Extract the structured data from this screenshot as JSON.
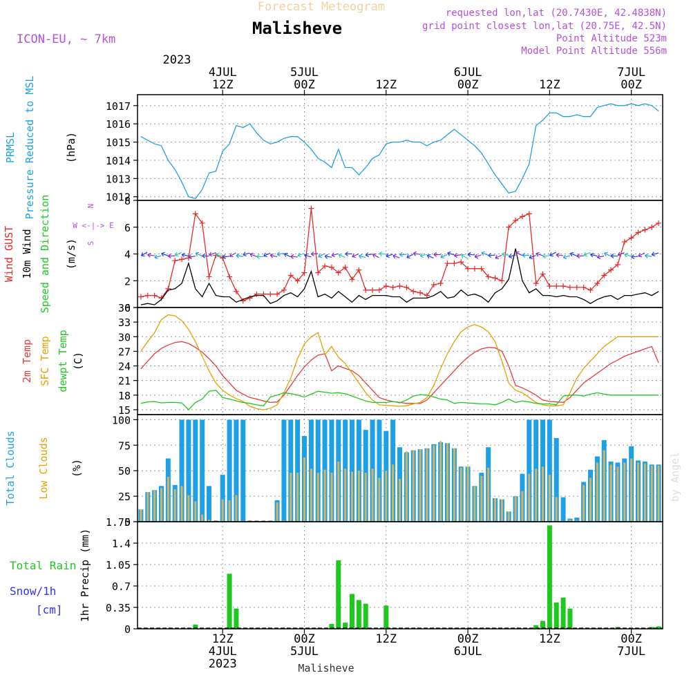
{
  "header": {
    "model": "ICON-EU, ~ 7km",
    "title": "Malisheve",
    "subtitle": "Forecast Meteogram",
    "info": [
      "requested lon,lat (20.7430E, 42.4838N)",
      "grid point closest lon,lat (20.75E, 42.5N)",
      "Point Altitude 523m",
      "Model Point Altitude 556m"
    ],
    "bottom_label": "Malisheve",
    "credit": "by Angel"
  },
  "colors": {
    "pressure": "#1ea0e6",
    "gust": "#e62828",
    "wind": "#000000",
    "temp2m": "#e63c3c",
    "sfc": "#e6a000",
    "dewpt": "#1ec81e",
    "total_clouds": "#1ea0e6",
    "low_clouds": "#d2b464",
    "rain": "#1ec81e",
    "snow": "#3232e6",
    "grid": "#999999",
    "axis": "#000000",
    "title_color": "#000000",
    "info_color": "#b450dc",
    "subtitle_color": "#f0d2a0"
  },
  "time_axis": {
    "top_year": "2023",
    "top_ticks": [
      {
        "h": 12,
        "l1": "4JUL",
        "l2": "12Z"
      },
      {
        "h": 24,
        "l1": "5JUL",
        "l2": "00Z"
      },
      {
        "h": 36,
        "l1": "",
        "l2": "12Z"
      },
      {
        "h": 48,
        "l1": "6JUL",
        "l2": "00Z"
      },
      {
        "h": 60,
        "l1": "",
        "l2": "12Z"
      },
      {
        "h": 72,
        "l1": "7JUL",
        "l2": "00Z"
      }
    ],
    "bottom_ticks": [
      {
        "h": 12,
        "l1": "12Z",
        "l2": "4JUL",
        "l3": "2023"
      },
      {
        "h": 24,
        "l1": "00Z",
        "l2": "5JUL",
        "l3": ""
      },
      {
        "h": 36,
        "l1": "12Z",
        "l2": "",
        "l3": ""
      },
      {
        "h": 48,
        "l1": "00Z",
        "l2": "6JUL",
        "l3": ""
      },
      {
        "h": 60,
        "l1": "12Z",
        "l2": "",
        "l3": ""
      },
      {
        "h": 72,
        "l1": "00Z",
        "l2": "7JUL",
        "l3": ""
      }
    ]
  },
  "chart_data": [
    {
      "type": "line",
      "title": "PRMSL Pressure Reduced to MSL",
      "ylabel": [
        "PRMSL",
        "Pressure Reduced to MSL",
        "(hPa)"
      ],
      "ylim": [
        1011.8,
        1017.6
      ],
      "yticks": [
        1012,
        1013,
        1014,
        1015,
        1016,
        1017
      ],
      "x_hours": [
        0,
        1,
        2,
        3,
        4,
        5,
        6,
        7,
        8,
        9,
        10,
        11,
        12,
        13,
        14,
        15,
        16,
        17,
        18,
        19,
        20,
        21,
        22,
        23,
        24,
        25,
        26,
        27,
        28,
        29,
        30,
        31,
        32,
        33,
        34,
        35,
        36,
        37,
        38,
        39,
        40,
        41,
        42,
        43,
        44,
        45,
        46,
        47,
        48,
        49,
        50,
        51,
        52,
        53,
        54,
        55,
        56,
        57,
        58,
        59,
        60,
        61,
        62,
        63,
        64,
        65,
        66,
        67,
        68,
        69,
        70,
        71,
        72,
        73,
        74,
        75,
        76
      ],
      "series": [
        {
          "name": "PRMSL",
          "values": [
            1015.3,
            1015.1,
            1014.9,
            1014.8,
            1014.0,
            1013.5,
            1012.8,
            1012.0,
            1011.9,
            1012.4,
            1013.3,
            1013.4,
            1014.5,
            1014.9,
            1015.9,
            1015.8,
            1016.0,
            1015.5,
            1015.1,
            1014.9,
            1015.0,
            1015.2,
            1015.3,
            1015.3,
            1015.0,
            1014.6,
            1014.1,
            1013.9,
            1013.6,
            1014.6,
            1013.6,
            1013.6,
            1013.2,
            1013.6,
            1014.1,
            1014.3,
            1014.9,
            1015.0,
            1015.0,
            1015.1,
            1015.0,
            1015.0,
            1014.8,
            1015.0,
            1015.1,
            1015.4,
            1015.7,
            1015.4,
            1015.1,
            1014.8,
            1014.4,
            1013.8,
            1013.2,
            1012.7,
            1012.2,
            1012.3,
            1013.0,
            1013.8,
            1015.9,
            1016.2,
            1016.6,
            1016.6,
            1016.4,
            1016.4,
            1016.5,
            1016.4,
            1016.4,
            1016.9,
            1017.0,
            1017.1,
            1017.0,
            1017.0,
            1017.1,
            1017.0,
            1017.1,
            1017.0,
            1016.7
          ]
        }
      ]
    },
    {
      "type": "line",
      "title": "Wind GUST, 10m Wind Speed and Direction",
      "ylabel": [
        "Wind GUST",
        "10m Wind",
        "Speed and Direction",
        "(m/s)"
      ],
      "ylim": [
        0,
        8
      ],
      "yticks": [
        0,
        2,
        4,
        6,
        8
      ],
      "compass": [
        "N",
        "W <-|-> E",
        "S"
      ],
      "x_hours": [
        0,
        1,
        2,
        3,
        4,
        5,
        6,
        7,
        8,
        9,
        10,
        11,
        12,
        13,
        14,
        15,
        16,
        17,
        18,
        19,
        20,
        21,
        22,
        23,
        24,
        25,
        26,
        27,
        28,
        29,
        30,
        31,
        32,
        33,
        34,
        35,
        36,
        37,
        38,
        39,
        40,
        41,
        42,
        43,
        44,
        45,
        46,
        47,
        48,
        49,
        50,
        51,
        52,
        53,
        54,
        55,
        56,
        57,
        58,
        59,
        60,
        61,
        62,
        63,
        64,
        65,
        66,
        67,
        68,
        69,
        70,
        71,
        72,
        73,
        74,
        75,
        76
      ],
      "series": [
        {
          "name": "Wind GUST",
          "values": [
            0.8,
            0.9,
            0.9,
            0.7,
            1.4,
            3.5,
            3.6,
            3.7,
            7.0,
            6.3,
            2.3,
            3.9,
            3.7,
            2.3,
            1.2,
            0.5,
            0.7,
            1.0,
            1.0,
            1.0,
            1.0,
            1.3,
            2.4,
            2.0,
            2.6,
            7.4,
            2.6,
            3.1,
            3.0,
            2.6,
            3.0,
            2.1,
            2.8,
            1.3,
            1.3,
            1.3,
            1.6,
            1.5,
            1.6,
            1.5,
            1.2,
            1.1,
            0.9,
            1.7,
            1.8,
            3.3,
            3.3,
            3.4,
            2.9,
            2.9,
            2.9,
            2.3,
            2.2,
            2.0,
            6.0,
            6.5,
            6.8,
            7.0,
            1.8,
            2.5,
            1.6,
            1.6,
            1.6,
            1.5,
            1.5,
            1.5,
            1.3,
            1.8,
            2.4,
            2.8,
            3.2,
            4.9,
            5.2,
            5.6,
            5.8,
            6.0,
            6.3
          ]
        },
        {
          "name": "10m Wind",
          "values": [
            0.2,
            0.3,
            0.2,
            0.6,
            1.3,
            1.4,
            1.8,
            3.3,
            1.4,
            0.8,
            1.8,
            0.9,
            0.8,
            0.8,
            0.4,
            0.6,
            0.8,
            0.9,
            0.9,
            0.3,
            0.5,
            0.9,
            1.1,
            0.8,
            1.4,
            2.7,
            0.8,
            1.0,
            0.7,
            1.2,
            0.8,
            0.4,
            0.9,
            0.6,
            0.9,
            0.9,
            0.9,
            0.8,
            0.8,
            0.4,
            0.7,
            0.7,
            0.7,
            0.9,
            1.2,
            0.7,
            0.8,
            1.3,
            0.9,
            1.0,
            0.8,
            0.4,
            1.1,
            1.4,
            2.1,
            4.4,
            2.0,
            1.1,
            1.4,
            0.9,
            0.9,
            0.8,
            0.9,
            0.8,
            0.8,
            0.6,
            0.3,
            0.6,
            0.8,
            0.9,
            0.6,
            0.9,
            0.9,
            1.0,
            1.1,
            0.9,
            1.2
          ]
        }
      ],
      "direction_arrows": {
        "name": "Speed and Direction",
        "count": 76,
        "level": 3.9
      }
    },
    {
      "type": "line",
      "title": "2m Temp, SFC Temp, dewpt Temp",
      "ylabel": [
        "2m Temp",
        "SFC Temp",
        "dewpt Temp",
        "(C)"
      ],
      "ylim": [
        14,
        36
      ],
      "yticks": [
        15,
        18,
        21,
        24,
        27,
        30,
        33,
        36
      ],
      "x_hours": [
        0,
        1,
        2,
        3,
        4,
        5,
        6,
        7,
        8,
        9,
        10,
        11,
        12,
        13,
        14,
        15,
        16,
        17,
        18,
        19,
        20,
        21,
        22,
        23,
        24,
        25,
        26,
        27,
        28,
        29,
        30,
        31,
        32,
        33,
        34,
        35,
        36,
        37,
        38,
        39,
        40,
        41,
        42,
        43,
        44,
        45,
        46,
        47,
        48,
        49,
        50,
        51,
        52,
        53,
        54,
        55,
        56,
        57,
        58,
        59,
        60,
        61,
        62,
        63,
        64,
        65,
        66,
        67,
        68,
        69,
        70,
        71,
        72,
        73,
        74,
        75,
        76
      ],
      "series": [
        {
          "name": "2m Temp",
          "values": [
            23.4,
            25.0,
            26.5,
            27.6,
            28.3,
            28.8,
            29.0,
            28.6,
            27.8,
            26.8,
            25.5,
            24.0,
            22.0,
            20.5,
            19.0,
            18.2,
            17.5,
            17.2,
            16.8,
            16.5,
            16.6,
            18.0,
            20.0,
            22.0,
            23.8,
            25.2,
            26.2,
            26.5,
            23.0,
            24.0,
            23.5,
            23.0,
            22.0,
            20.5,
            19.0,
            17.5,
            17.0,
            16.7,
            16.5,
            16.3,
            16.3,
            16.3,
            17.0,
            18.5,
            20.0,
            21.5,
            23.0,
            24.5,
            25.8,
            26.8,
            27.5,
            27.8,
            27.7,
            27.0,
            24.0,
            20.0,
            19.5,
            18.8,
            18.0,
            17.0,
            16.7,
            16.6,
            16.5,
            17.5,
            19.0,
            20.5,
            21.5,
            22.5,
            23.5,
            24.5,
            25.2,
            26.0,
            26.5,
            27.0,
            27.5,
            28.0,
            24.6
          ]
        },
        {
          "name": "SFC Temp",
          "values": [
            27.0,
            29.0,
            30.8,
            33.5,
            34.5,
            34.3,
            33.3,
            31.5,
            29.0,
            26.0,
            23.0,
            20.5,
            19.0,
            18.0,
            17.3,
            16.7,
            15.7,
            15.2,
            15.0,
            15.3,
            16.0,
            18.5,
            21.5,
            25.5,
            28.5,
            30.0,
            30.8,
            26.3,
            28.0,
            25.8,
            24.5,
            22.5,
            20.5,
            18.5,
            17.0,
            16.0,
            15.9,
            15.8,
            15.7,
            15.8,
            16.2,
            16.5,
            17.5,
            20.0,
            23.5,
            26.5,
            29.0,
            31.0,
            32.0,
            32.5,
            32.0,
            31.0,
            29.0,
            25.0,
            20.5,
            19.0,
            18.5,
            17.5,
            16.5,
            16.0,
            15.8,
            15.8,
            16.0,
            18.5,
            21.5,
            23.5,
            25.0,
            26.5,
            28.0,
            29.0,
            30.0,
            30.0,
            30.0,
            30.0,
            30.0,
            30.0,
            30.0
          ]
        },
        {
          "name": "dewpt Temp",
          "values": [
            16.3,
            16.6,
            16.7,
            16.4,
            16.5,
            16.5,
            16.4,
            15.0,
            16.5,
            17.2,
            18.8,
            19.0,
            17.5,
            17.2,
            16.8,
            16.5,
            16.3,
            16.0,
            15.8,
            17.6,
            18.0,
            18.5,
            18.3,
            18.0,
            17.6,
            18.2,
            18.8,
            18.6,
            18.4,
            18.5,
            18.3,
            17.8,
            17.3,
            16.8,
            16.5,
            16.5,
            16.5,
            16.7,
            16.4,
            17.0,
            17.8,
            18.1,
            18.0,
            17.6,
            17.2,
            17.0,
            16.3,
            16.5,
            16.4,
            16.3,
            16.2,
            16.2,
            16.0,
            16.5,
            17.2,
            16.5,
            16.8,
            16.6,
            16.3,
            16.2,
            16.2,
            16.0,
            17.8,
            18.0,
            18.0,
            17.8,
            18.2,
            18.5,
            18.2,
            18.0,
            18.0,
            18.0,
            18.0,
            18.0,
            18.0,
            18.0,
            18.0
          ]
        }
      ]
    },
    {
      "type": "bar",
      "title": "Total Clouds, Low Clouds",
      "ylabel": [
        "Total Clouds",
        "Low Clouds",
        "(%)"
      ],
      "ylim": [
        0,
        105
      ],
      "yticks": [
        0,
        25,
        50,
        75,
        100
      ],
      "x_hours": [
        0,
        1,
        2,
        3,
        4,
        5,
        6,
        7,
        8,
        9,
        10,
        11,
        12,
        13,
        14,
        15,
        16,
        17,
        18,
        19,
        20,
        21,
        22,
        23,
        24,
        25,
        26,
        27,
        28,
        29,
        30,
        31,
        32,
        33,
        34,
        35,
        36,
        37,
        38,
        39,
        40,
        41,
        42,
        43,
        44,
        45,
        46,
        47,
        48,
        49,
        50,
        51,
        52,
        53,
        54,
        55,
        56,
        57,
        58,
        59,
        60,
        61,
        62,
        63,
        64,
        65,
        66,
        67,
        68,
        69,
        70,
        71,
        72,
        73,
        74,
        75,
        76
      ],
      "series": [
        {
          "name": "Total Clouds",
          "values": [
            12,
            29,
            31,
            35,
            62,
            36,
            100,
            100,
            100,
            100,
            35,
            0,
            46,
            100,
            100,
            100,
            0,
            0,
            0,
            0,
            21,
            100,
            100,
            100,
            84,
            100,
            100,
            100,
            100,
            100,
            100,
            100,
            100,
            90,
            100,
            100,
            89,
            100,
            73,
            68,
            70,
            71,
            72,
            76,
            78,
            77,
            72,
            54,
            54,
            35,
            48,
            73,
            23,
            22,
            10,
            25,
            47,
            100,
            100,
            100,
            100,
            82,
            24,
            3,
            4,
            39,
            51,
            64,
            80,
            59,
            58,
            62,
            74,
            60,
            59,
            56,
            56
          ]
        },
        {
          "name": "Low Clouds",
          "values": [
            12,
            29,
            31,
            33,
            44,
            32,
            35,
            26,
            20,
            7,
            2,
            0,
            22,
            21,
            26,
            0,
            0,
            0,
            0,
            0,
            19,
            1,
            48,
            48,
            63,
            52,
            48,
            51,
            48,
            59,
            52,
            49,
            50,
            48,
            52,
            43,
            50,
            56,
            42,
            69,
            70,
            71,
            72,
            75,
            79,
            77,
            72,
            53,
            54,
            35,
            45,
            53,
            23,
            22,
            10,
            25,
            30,
            47,
            52,
            54,
            46,
            24,
            0,
            2,
            1,
            36,
            43,
            58,
            70,
            56,
            54,
            58,
            62,
            58,
            57,
            55,
            55
          ]
        }
      ]
    },
    {
      "type": "bar",
      "title": "1hr Precip",
      "ylabel": [
        "1hr Precip (mm)"
      ],
      "left_labels": [
        "Total  Rain",
        "Snow/1h",
        "[cm]"
      ],
      "ylim": [
        0,
        1.75
      ],
      "yticks": [
        0,
        0.35,
        0.7,
        1.05,
        1.4,
        1.75
      ],
      "ytick_labels": [
        "0",
        "0.35",
        "0.7",
        "1.05",
        "1.4",
        "1.75"
      ],
      "x_hours": [
        8,
        13,
        14,
        28,
        29,
        30,
        31,
        32,
        33,
        36,
        58,
        59,
        60,
        61,
        62,
        63,
        70,
        75,
        76
      ],
      "series": [
        {
          "name": "Total Rain",
          "values": [
            0.07,
            0.9,
            0.33,
            0.08,
            1.12,
            0.1,
            0.57,
            0.47,
            0.41,
            0.38,
            0.06,
            0.13,
            1.69,
            0.43,
            0.51,
            0.33,
            0.03,
            0.03,
            0.04
          ]
        }
      ]
    }
  ]
}
